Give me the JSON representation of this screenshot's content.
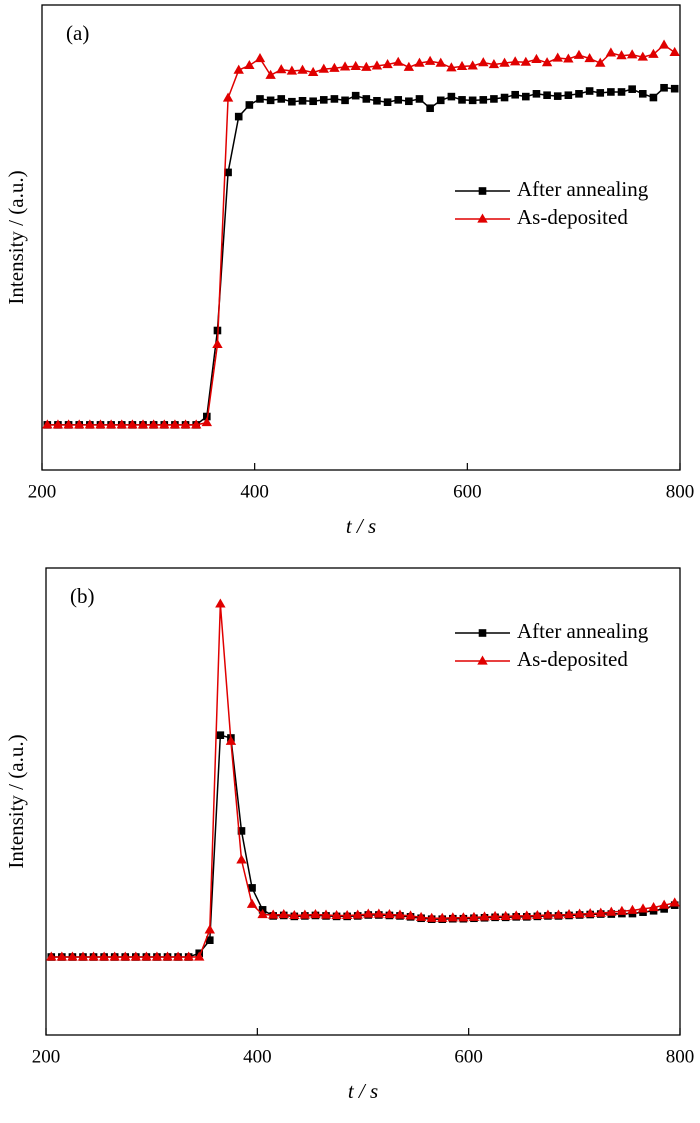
{
  "chart_data": [
    {
      "type": "line",
      "annotation": "(a)",
      "xlabel": "t / s",
      "ylabel": "Intensity / (a.u.)",
      "xlim": [
        200,
        800
      ],
      "xticks": [
        200,
        400,
        600,
        800
      ],
      "ylim": [
        0,
        100
      ],
      "legend": "right",
      "x": [
        205,
        215,
        225,
        235,
        245,
        255,
        265,
        275,
        285,
        295,
        305,
        315,
        325,
        335,
        345,
        355,
        365,
        375,
        385,
        395,
        405,
        415,
        425,
        435,
        445,
        455,
        465,
        475,
        485,
        495,
        505,
        515,
        525,
        535,
        545,
        555,
        565,
        575,
        585,
        595,
        605,
        615,
        625,
        635,
        645,
        655,
        665,
        675,
        685,
        695,
        705,
        715,
        725,
        735,
        745,
        755,
        765,
        775,
        785,
        795
      ],
      "series": [
        {
          "name": "After annealing",
          "color": "#000000",
          "marker": "square",
          "values": [
            9.7,
            9.7,
            9.7,
            9.7,
            9.7,
            9.7,
            9.7,
            9.7,
            9.7,
            9.7,
            9.7,
            9.7,
            9.7,
            9.7,
            9.7,
            11.5,
            30,
            64,
            76,
            78.5,
            79.8,
            79.5,
            79.8,
            79.2,
            79.4,
            79.3,
            79.6,
            79.8,
            79.5,
            80.5,
            79.8,
            79.4,
            79.1,
            79.6,
            79.3,
            79.8,
            77.8,
            79.5,
            80.3,
            79.6,
            79.5,
            79.6,
            79.8,
            80.1,
            80.7,
            80.3,
            80.9,
            80.6,
            80.4,
            80.6,
            80.9,
            81.5,
            81.1,
            81.3,
            81.3,
            81.9,
            80.9,
            80.1,
            82.2,
            82.0
          ]
        },
        {
          "name": "As-deposited",
          "color": "#e00000",
          "marker": "triangle",
          "values": [
            9.7,
            9.7,
            9.7,
            9.7,
            9.7,
            9.7,
            9.7,
            9.7,
            9.7,
            9.7,
            9.7,
            9.7,
            9.7,
            9.7,
            9.7,
            10.2,
            27,
            80,
            86,
            87,
            88.5,
            84.9,
            86.1,
            85.8,
            86,
            85.5,
            86.2,
            86.4,
            86.7,
            86.8,
            86.6,
            86.9,
            87.2,
            87.7,
            86.6,
            87.5,
            87.9,
            87.5,
            86.5,
            86.8,
            86.9,
            87.6,
            87.2,
            87.5,
            87.8,
            87.7,
            88.3,
            87.6,
            88.6,
            88.4,
            89.2,
            88.5,
            87.5,
            89.7,
            89.1,
            89.3,
            88.8,
            89.4,
            91.4,
            89.8
          ]
        }
      ]
    },
    {
      "type": "line",
      "annotation": "(b)",
      "xlabel": "t / s",
      "ylabel": "Intensity / (a.u.)",
      "xlim": [
        200,
        800
      ],
      "xticks": [
        200,
        400,
        600,
        800
      ],
      "ylim": [
        0,
        100
      ],
      "legend": "upper right",
      "x": [
        205,
        215,
        225,
        235,
        245,
        255,
        265,
        275,
        285,
        295,
        305,
        315,
        325,
        335,
        345,
        355,
        365,
        375,
        385,
        395,
        405,
        415,
        425,
        435,
        445,
        455,
        465,
        475,
        485,
        495,
        505,
        515,
        525,
        535,
        545,
        555,
        565,
        575,
        585,
        595,
        605,
        615,
        625,
        635,
        645,
        655,
        665,
        675,
        685,
        695,
        705,
        715,
        725,
        735,
        745,
        755,
        765,
        775,
        785,
        795
      ],
      "series": [
        {
          "name": "After annealing",
          "color": "#000000",
          "marker": "square",
          "values": [
            16.7,
            16.7,
            16.7,
            16.7,
            16.7,
            16.7,
            16.7,
            16.7,
            16.7,
            16.7,
            16.7,
            16.7,
            16.7,
            16.7,
            17.5,
            20.3,
            64.2,
            63.6,
            43.7,
            31.5,
            26.8,
            25.5,
            25.6,
            25.4,
            25.5,
            25.6,
            25.5,
            25.4,
            25.4,
            25.5,
            25.7,
            25.7,
            25.6,
            25.5,
            25.3,
            25.0,
            24.8,
            24.8,
            24.9,
            24.9,
            25.0,
            25.1,
            25.2,
            25.2,
            25.3,
            25.3,
            25.4,
            25.5,
            25.5,
            25.6,
            25.7,
            25.8,
            25.9,
            25.9,
            26.0,
            26.0,
            26.3,
            26.6,
            27.0,
            27.8
          ]
        },
        {
          "name": "As-deposited",
          "color": "#e00000",
          "marker": "triangle",
          "values": [
            16.7,
            16.7,
            16.7,
            16.7,
            16.7,
            16.7,
            16.7,
            16.7,
            16.7,
            16.7,
            16.7,
            16.7,
            16.7,
            16.7,
            16.7,
            22.5,
            92.3,
            62.9,
            37.5,
            28,
            25.8,
            25.7,
            25.8,
            25.6,
            25.7,
            25.8,
            25.7,
            25.6,
            25.6,
            25.7,
            25.9,
            25.9,
            25.8,
            25.7,
            25.5,
            25.2,
            25.0,
            25.0,
            25.1,
            25.1,
            25.2,
            25.3,
            25.4,
            25.4,
            25.5,
            25.5,
            25.6,
            25.7,
            25.7,
            25.8,
            25.9,
            26.0,
            26.1,
            26.3,
            26.5,
            26.7,
            27.0,
            27.3,
            27.8,
            28.3
          ]
        }
      ]
    }
  ]
}
